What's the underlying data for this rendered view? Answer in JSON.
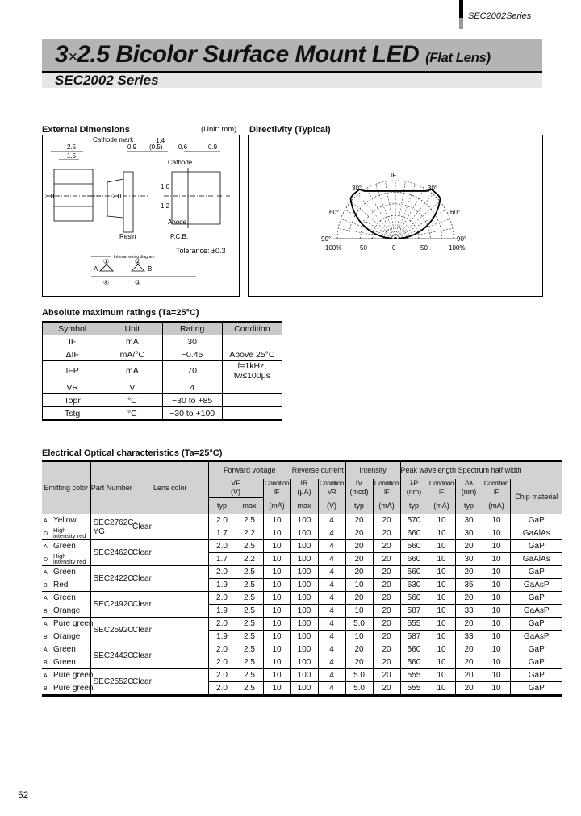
{
  "header": {
    "series_tag": "SEC2002Series"
  },
  "title": {
    "main_prefix": "3",
    "times": "×",
    "main_rest": "2.5 Bicolor Surface Mount LED",
    "suffix": "(Flat Lens)",
    "subtitle": "SEC2002 Series"
  },
  "dimensions": {
    "heading": "External Dimensions",
    "unit": "(Unit: mm)",
    "labels": {
      "d25": "2.5",
      "d15": "1.5",
      "d30": "3.0",
      "d20": "2.0",
      "d09": "0.9",
      "d05": "(0.5)",
      "d14": "1.4",
      "d06": "0.6",
      "d092": "0.9",
      "d10": "1.0",
      "d12": "1.2",
      "cathode_mark": "Cathode mark",
      "cathode": "Cathode",
      "anode": "Anode",
      "resin": "Resin",
      "pcb": "P.C.B.",
      "tolerance": "Tolerance: ±0.3",
      "wiring": "Internal wiring diagram",
      "a": "A",
      "b": "B",
      "p1": "①",
      "p2": "②",
      "p3": "③",
      "p4": "④"
    }
  },
  "directivity": {
    "heading": "Directivity (Typical)",
    "labels": {
      "if": "IF",
      "a30l": "30°",
      "a30r": "30°",
      "a60l": "60°",
      "a60r": "60°",
      "a90l": "90°",
      "a90r": "90°",
      "p100l": "100%",
      "p50l": "50",
      "p0": "0",
      "p50r": "50",
      "p100r": "100%"
    }
  },
  "abs_max": {
    "heading": "Absolute maximum ratings (Ta=25°C)",
    "columns": [
      "Symbol",
      "Unit",
      "Rating",
      "Condition"
    ],
    "rows": [
      [
        "IF",
        "mA",
        "30",
        ""
      ],
      [
        "ΔIF",
        "mA/°C",
        "−0.45",
        "Above 25°C"
      ],
      [
        "IFP",
        "mA",
        "70",
        "f=1kHz, tw≤100μs"
      ],
      [
        "VR",
        "V",
        "4",
        ""
      ],
      [
        "Topr",
        "°C",
        "−30 to +85",
        ""
      ],
      [
        "Tstg",
        "°C",
        "−30 to +100",
        ""
      ]
    ]
  },
  "electro_optical": {
    "heading": "Electrical Optical characteristics (Ta=25°C)",
    "header": {
      "emitting": "Emitting color",
      "part": "Part Number",
      "lens": "Lens color",
      "fv": "Forward voltage",
      "rc": "Reverse current",
      "int": "Intensity",
      "pw": "Peak wavelength Spectrum half width",
      "chip": "Chip material",
      "vf": "VF",
      "v": "(V)",
      "cond": "Condition",
      "if": "IF",
      "ir": "IR",
      "ua": "(μA)",
      "vr": "VR",
      "iv": "IV",
      "mcd": "(mcd)",
      "lp": "λP",
      "nm": "(nm)",
      "dl": "Δλ",
      "typ": "typ",
      "max": "max",
      "ma": "(mA)"
    },
    "groups": [
      {
        "part": "SEC2762C-YG",
        "lens": "Clear",
        "rows": [
          {
            "tag": "A",
            "color": "Yellow",
            "vals": [
              "2.0",
              "2.5",
              "10",
              "100",
              "4",
              "20",
              "20",
              "570",
              "10",
              "30",
              "10",
              "GaP"
            ]
          },
          {
            "tag": "D",
            "color": "High intensity red",
            "vals": [
              "1.7",
              "2.2",
              "10",
              "100",
              "4",
              "20",
              "20",
              "660",
              "10",
              "30",
              "10",
              "GaAlAs"
            ]
          }
        ]
      },
      {
        "part": "SEC2462C",
        "lens": "Clear",
        "rows": [
          {
            "tag": "A",
            "color": "Green",
            "vals": [
              "2.0",
              "2.5",
              "10",
              "100",
              "4",
              "20",
              "20",
              "560",
              "10",
              "20",
              "10",
              "GaP"
            ]
          },
          {
            "tag": "D",
            "color": "High intensity red",
            "vals": [
              "1.7",
              "2.2",
              "10",
              "100",
              "4",
              "20",
              "20",
              "660",
              "10",
              "30",
              "10",
              "GaAlAs"
            ]
          }
        ]
      },
      {
        "part": "SEC2422C",
        "lens": "Clear",
        "rows": [
          {
            "tag": "A",
            "color": "Green",
            "vals": [
              "2.0",
              "2.5",
              "10",
              "100",
              "4",
              "20",
              "20",
              "560",
              "10",
              "20",
              "10",
              "GaP"
            ]
          },
          {
            "tag": "B",
            "color": "Red",
            "vals": [
              "1.9",
              "2.5",
              "10",
              "100",
              "4",
              "10",
              "20",
              "630",
              "10",
              "35",
              "10",
              "GaAsP"
            ]
          }
        ]
      },
      {
        "part": "SEC2492C",
        "lens": "Clear",
        "rows": [
          {
            "tag": "A",
            "color": "Green",
            "vals": [
              "2.0",
              "2.5",
              "10",
              "100",
              "4",
              "20",
              "20",
              "560",
              "10",
              "20",
              "10",
              "GaP"
            ]
          },
          {
            "tag": "B",
            "color": "Orange",
            "vals": [
              "1.9",
              "2.5",
              "10",
              "100",
              "4",
              "10",
              "20",
              "587",
              "10",
              "33",
              "10",
              "GaAsP"
            ]
          }
        ]
      },
      {
        "part": "SEC2592C",
        "lens": "Clear",
        "rows": [
          {
            "tag": "A",
            "color": "Pure green",
            "vals": [
              "2.0",
              "2.5",
              "10",
              "100",
              "4",
              "5.0",
              "20",
              "555",
              "10",
              "20",
              "10",
              "GaP"
            ]
          },
          {
            "tag": "B",
            "color": "Orange",
            "vals": [
              "1.9",
              "2.5",
              "10",
              "100",
              "4",
              "10",
              "20",
              "587",
              "10",
              "33",
              "10",
              "GaAsP"
            ]
          }
        ]
      },
      {
        "part": "SEC2442C",
        "lens": "Clear",
        "rows": [
          {
            "tag": "A",
            "color": "Green",
            "vals": [
              "2.0",
              "2.5",
              "10",
              "100",
              "4",
              "20",
              "20",
              "560",
              "10",
              "20",
              "10",
              "GaP"
            ]
          },
          {
            "tag": "B",
            "color": "Green",
            "vals": [
              "2.0",
              "2.5",
              "10",
              "100",
              "4",
              "20",
              "20",
              "560",
              "10",
              "20",
              "10",
              "GaP"
            ]
          }
        ]
      },
      {
        "part": "SEC2552C",
        "lens": "Clear",
        "rows": [
          {
            "tag": "A",
            "color": "Pure green",
            "vals": [
              "2.0",
              "2.5",
              "10",
              "100",
              "4",
              "5.0",
              "20",
              "555",
              "10",
              "20",
              "10",
              "GaP"
            ]
          },
          {
            "tag": "B",
            "color": "Pure green",
            "vals": [
              "2.0",
              "2.5",
              "10",
              "100",
              "4",
              "5.0",
              "20",
              "555",
              "10",
              "20",
              "10",
              "GaP"
            ]
          }
        ]
      }
    ]
  },
  "footer": {
    "page_number": "52"
  }
}
